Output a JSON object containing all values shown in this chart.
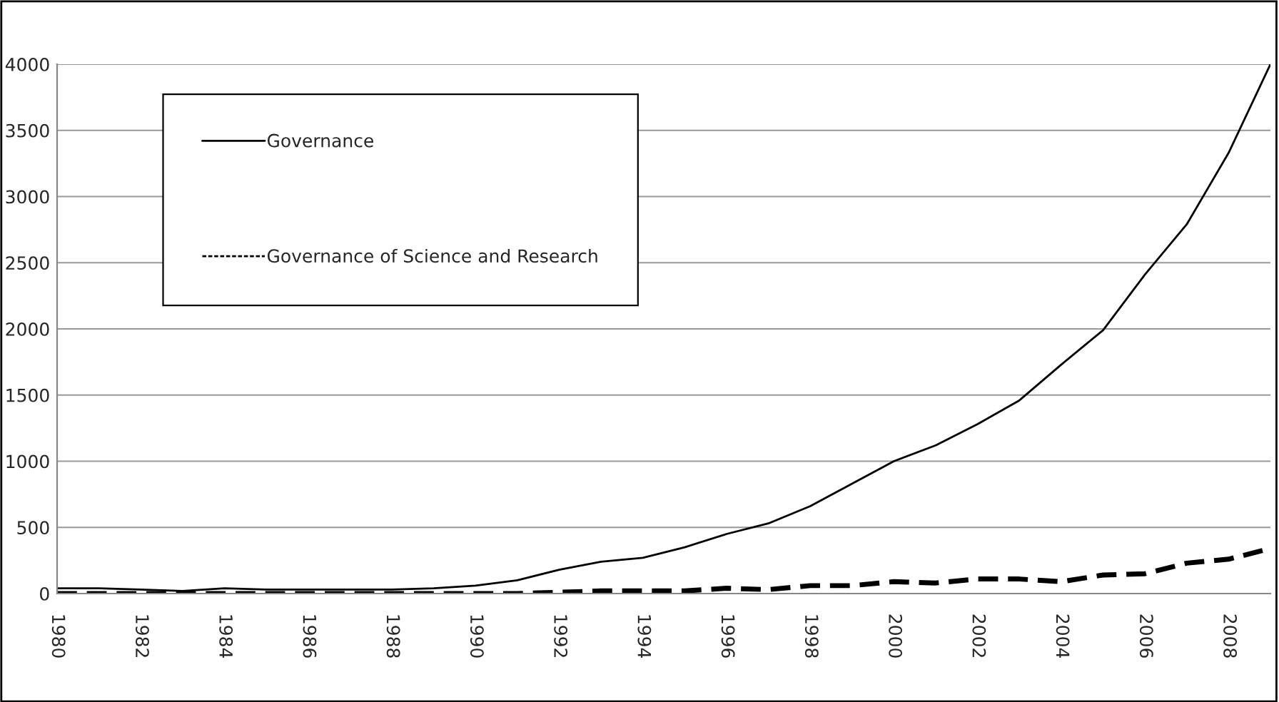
{
  "chart_data": {
    "type": "line",
    "x": [
      1980,
      1981,
      1982,
      1983,
      1984,
      1985,
      1986,
      1987,
      1988,
      1989,
      1990,
      1991,
      1992,
      1993,
      1994,
      1995,
      1996,
      1997,
      1998,
      1999,
      2000,
      2001,
      2002,
      2003,
      2004,
      2005,
      2006,
      2007,
      2008,
      2009
    ],
    "series": [
      {
        "name": "Governance",
        "color": "#000000",
        "line_style": "solid",
        "values": [
          40,
          40,
          30,
          20,
          40,
          30,
          30,
          30,
          30,
          40,
          60,
          100,
          180,
          240,
          270,
          350,
          450,
          530,
          660,
          830,
          1000,
          1120,
          1280,
          1460,
          1730,
          1990,
          2410,
          2790,
          3330,
          4000
        ]
      },
      {
        "name": "Governance of Science and Research",
        "color": "#000000",
        "line_style": "dashed",
        "values": [
          0,
          0,
          0,
          0,
          0,
          0,
          0,
          0,
          0,
          0,
          0,
          0,
          10,
          20,
          20,
          20,
          40,
          30,
          60,
          60,
          90,
          80,
          110,
          110,
          90,
          140,
          150,
          230,
          260,
          340
        ]
      }
    ],
    "xlim": [
      1980,
      2009
    ],
    "xticks": [
      1980,
      1982,
      1984,
      1986,
      1988,
      1990,
      1992,
      1994,
      1996,
      1998,
      2000,
      2002,
      2004,
      2006,
      2008
    ],
    "ylim": [
      0,
      4000
    ],
    "yticks": [
      0,
      500,
      1000,
      1500,
      2000,
      2500,
      3000,
      3500,
      4000
    ],
    "grid": "y",
    "legend": "top left",
    "marker": "none"
  }
}
